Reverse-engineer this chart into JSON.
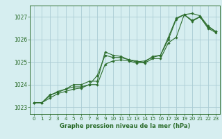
{
  "xlabel": "Graphe pression niveau de la mer (hPa)",
  "background_color": "#d6eef0",
  "grid_color": "#aaccd4",
  "line_color": "#2d6e2d",
  "ylim": [
    1022.7,
    1027.5
  ],
  "xlim": [
    -0.5,
    23.5
  ],
  "yticks": [
    1023,
    1024,
    1025,
    1026,
    1027
  ],
  "xticks": [
    0,
    1,
    2,
    3,
    4,
    5,
    6,
    7,
    8,
    9,
    10,
    11,
    12,
    13,
    14,
    15,
    16,
    17,
    18,
    19,
    20,
    21,
    22,
    23
  ],
  "series": [
    [
      1023.2,
      1023.2,
      1023.4,
      1023.6,
      1023.7,
      1023.8,
      1023.85,
      1024.0,
      1024.4,
      1025.3,
      1025.2,
      1025.2,
      1025.1,
      1025.0,
      1025.05,
      1025.2,
      1025.3,
      1026.0,
      1026.9,
      1027.1,
      1026.8,
      1027.0,
      1026.5,
      1026.3
    ],
    [
      1023.2,
      1023.2,
      1023.5,
      1023.7,
      1023.8,
      1024.0,
      1024.0,
      1024.15,
      1024.15,
      1025.45,
      1025.3,
      1025.25,
      1025.1,
      1025.05,
      1024.95,
      1025.15,
      1025.15,
      1025.85,
      1026.1,
      1027.1,
      1027.15,
      1027.05,
      1026.6,
      1026.35
    ],
    [
      1023.2,
      1023.2,
      1023.55,
      1023.65,
      1023.8,
      1023.9,
      1023.9,
      1024.0,
      1024.0,
      1024.9,
      1025.05,
      1025.1,
      1025.05,
      1024.95,
      1025.0,
      1025.25,
      1025.3,
      1026.1,
      1026.95,
      1027.1,
      1026.85,
      1027.0,
      1026.55,
      1026.35
    ]
  ]
}
